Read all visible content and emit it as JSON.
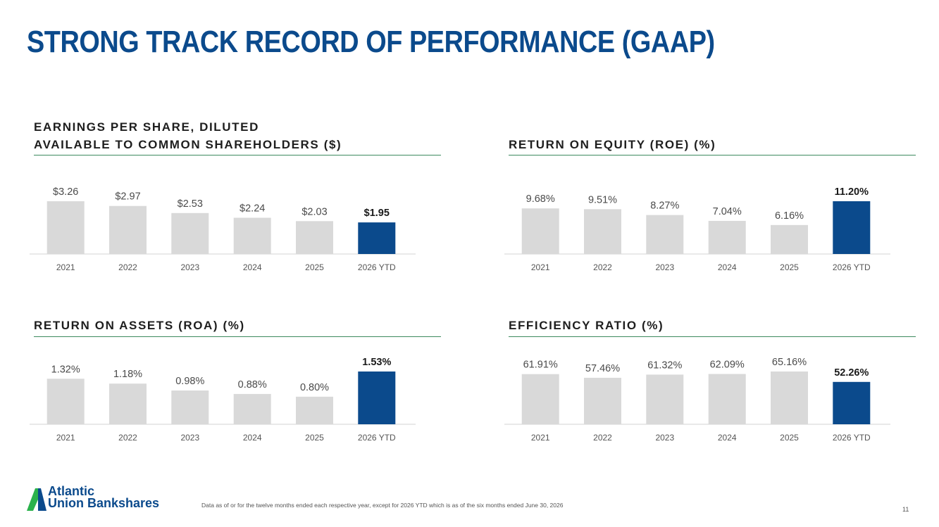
{
  "title": "STRONG TRACK RECORD OF PERFORMANCE (GAAP)",
  "colors": {
    "title": "#0b4a8c",
    "bar_default": "#d9d9d9",
    "bar_highlight": "#0b4a8c",
    "rule": "#3c8a5e",
    "axis": "#e2e2e2"
  },
  "chart_data": [
    {
      "type": "bar",
      "title": "EARNINGS PER SHARE, DILUTED AVAILABLE TO COMMON SHAREHOLDERS ($)",
      "title_lines": [
        "EARNINGS PER SHARE, DILUTED",
        "AVAILABLE TO COMMON SHAREHOLDERS ($)"
      ],
      "categories": [
        "2021",
        "2022",
        "2023",
        "2024",
        "2025",
        "2026 YTD"
      ],
      "values": [
        3.26,
        2.97,
        2.53,
        2.24,
        2.03,
        1.95
      ],
      "value_labels": [
        "$3.26",
        "$2.97",
        "$2.53",
        "$2.24",
        "$2.03",
        "$1.95"
      ],
      "highlight_index": 5,
      "ylim": [
        0,
        3.26
      ]
    },
    {
      "type": "bar",
      "title": "RETURN ON EQUITY (ROE) (%)",
      "title_lines": [
        "RETURN ON EQUITY (ROE) (%)"
      ],
      "categories": [
        "2021",
        "2022",
        "2023",
        "2024",
        "2025",
        "2026 YTD"
      ],
      "values": [
        9.68,
        9.51,
        8.27,
        7.04,
        6.16,
        11.2
      ],
      "value_labels": [
        "9.68%",
        "9.51%",
        "8.27%",
        "7.04%",
        "6.16%",
        "11.20%"
      ],
      "highlight_index": 5,
      "ylim": [
        0,
        11.2
      ]
    },
    {
      "type": "bar",
      "title": "RETURN ON ASSETS (ROA) (%)",
      "title_lines": [
        "RETURN ON ASSETS (ROA) (%)"
      ],
      "categories": [
        "2021",
        "2022",
        "2023",
        "2024",
        "2025",
        "2026 YTD"
      ],
      "values": [
        1.32,
        1.18,
        0.98,
        0.88,
        0.8,
        1.53
      ],
      "value_labels": [
        "1.32%",
        "1.18%",
        "0.98%",
        "0.88%",
        "0.80%",
        "1.53%"
      ],
      "highlight_index": 5,
      "ylim": [
        0,
        1.53
      ]
    },
    {
      "type": "bar",
      "title": "EFFICIENCY RATIO (%)",
      "title_lines": [
        "EFFICIENCY RATIO (%)"
      ],
      "categories": [
        "2021",
        "2022",
        "2023",
        "2024",
        "2025",
        "2026 YTD"
      ],
      "values": [
        61.91,
        57.46,
        61.32,
        62.09,
        65.16,
        52.26
      ],
      "value_labels": [
        "61.91%",
        "57.46%",
        "61.32%",
        "62.09%",
        "65.16%",
        "52.26%"
      ],
      "highlight_index": 5,
      "ylim": [
        0,
        65.16
      ]
    }
  ],
  "footer": {
    "logo_lines": [
      "Atlantic",
      "Union Bankshares"
    ],
    "footnote": "Data as of or for the twelve months ended each respective year, except for 2026 YTD which is as of the six months ended June 30, 2026",
    "page_number": "11"
  }
}
